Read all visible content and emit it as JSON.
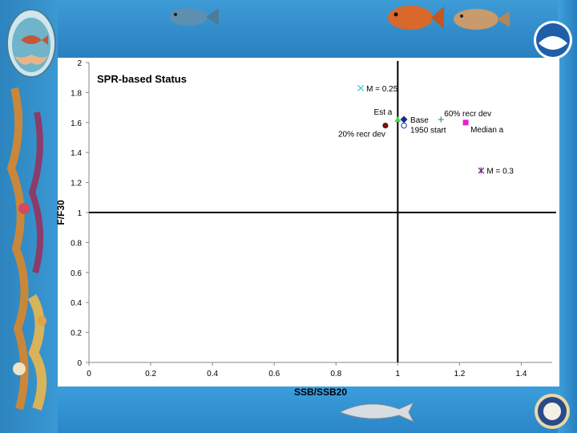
{
  "chart_data": {
    "type": "scatter",
    "title": "SPR-based Status",
    "xlabel": "SSB/SSB20",
    "ylabel": "F/F30",
    "xlim": [
      0,
      1.5
    ],
    "ylim": [
      0,
      2
    ],
    "xticks": [
      0,
      0.2,
      0.4,
      0.6,
      0.8,
      1,
      1.2,
      1.4
    ],
    "yticks": [
      0,
      0.2,
      0.4,
      0.6,
      0.8,
      1,
      1.2,
      1.4,
      1.6,
      1.8,
      2
    ],
    "reference_lines": {
      "x": 1,
      "y": 1
    },
    "grid": false,
    "legend": "none",
    "points": [
      {
        "label": "M = 0.25",
        "x": 0.88,
        "y": 1.83,
        "marker": "x",
        "color": "#3fc8d0"
      },
      {
        "label": "Est a",
        "x": 1.0,
        "y": 1.62,
        "marker": "triangle",
        "color": "#39e041"
      },
      {
        "label": "Base",
        "x": 1.02,
        "y": 1.62,
        "marker": "diamond",
        "color": "#1c2a8a"
      },
      {
        "label": "1950 start",
        "x": 1.02,
        "y": 1.58,
        "marker": "circle-open",
        "color": "#2a5bd0"
      },
      {
        "label": "20% recr dev",
        "x": 0.96,
        "y": 1.58,
        "marker": "circle",
        "color": "#7a1010"
      },
      {
        "label": "60% recr dev",
        "x": 1.14,
        "y": 1.62,
        "marker": "plus",
        "color": "#4a8a8a"
      },
      {
        "label": "Median a",
        "x": 1.22,
        "y": 1.6,
        "marker": "square",
        "color": "#e020d8"
      },
      {
        "label": "M = 0.3",
        "x": 1.27,
        "y": 1.28,
        "marker": "star",
        "color": "#7a1f8a"
      }
    ]
  }
}
